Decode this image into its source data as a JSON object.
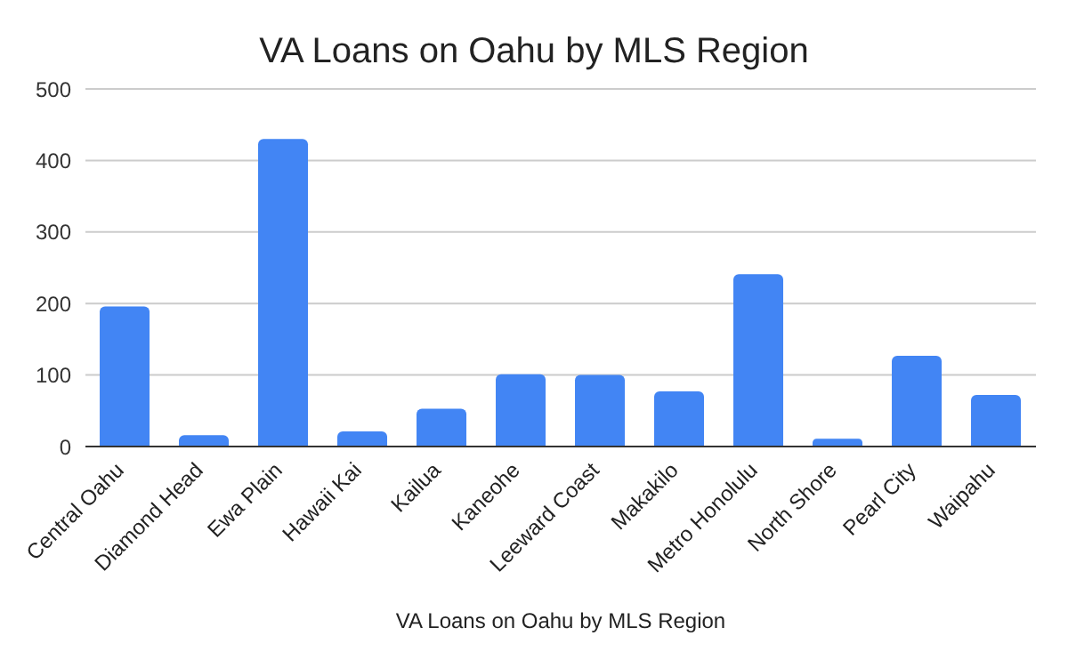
{
  "chart_data": {
    "type": "bar",
    "title": "VA Loans on Oahu by MLS Region",
    "xlabel": "VA Loans on Oahu by MLS Region",
    "categories": [
      "Central Oahu",
      "Diamond Head",
      "Ewa Plain",
      "Hawaii Kai",
      "Kailua",
      "Kaneohe",
      "Leeward Coast",
      "Makakilo",
      "Metro Honolulu",
      "North Shore",
      "Pearl City",
      "Waipahu"
    ],
    "values": [
      196,
      16,
      430,
      21,
      53,
      101,
      100,
      77,
      241,
      11,
      127,
      72
    ],
    "color": "#4285f4",
    "ylim": [
      0,
      500
    ],
    "yticks": [
      0,
      100,
      200,
      300,
      400,
      500
    ],
    "grid": "y"
  }
}
